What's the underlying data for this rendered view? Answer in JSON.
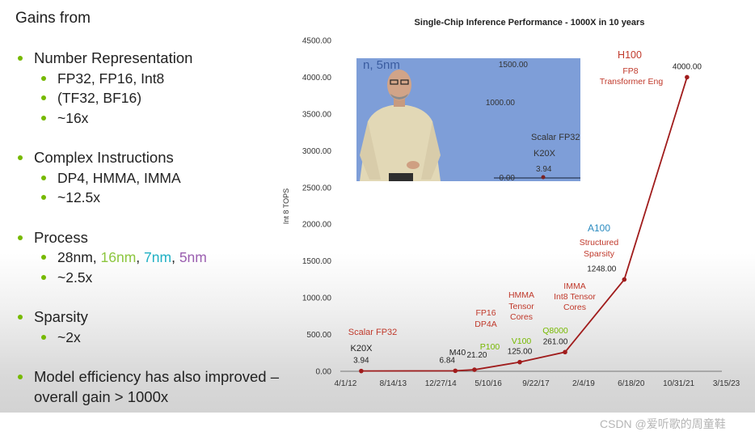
{
  "left": {
    "heading": "Gains from",
    "sections": [
      {
        "title": "Number Representation",
        "subs": [
          {
            "parts": [
              {
                "text": "FP32, FP16, Int8",
                "color": "#222222"
              }
            ]
          },
          {
            "parts": [
              {
                "text": "(TF32, BF16)",
                "color": "#222222"
              }
            ]
          },
          {
            "parts": [
              {
                "text": "~16x",
                "color": "#222222"
              }
            ]
          }
        ]
      },
      {
        "title": "Complex Instructions",
        "subs": [
          {
            "parts": [
              {
                "text": "DP4, HMMA, IMMA",
                "color": "#222222"
              }
            ]
          },
          {
            "parts": [
              {
                "text": "~12.5x",
                "color": "#222222"
              }
            ]
          }
        ]
      },
      {
        "title": "Process",
        "subs": [
          {
            "parts": [
              {
                "text": "28nm",
                "color": "#222222"
              },
              {
                "text": ", ",
                "color": "#222222"
              },
              {
                "text": "16nm",
                "color": "#8cc63e"
              },
              {
                "text": ", ",
                "color": "#222222"
              },
              {
                "text": "7nm",
                "color": "#1fb0c4"
              },
              {
                "text": ", ",
                "color": "#222222"
              },
              {
                "text": "5nm",
                "color": "#9b5fb0"
              }
            ]
          },
          {
            "parts": [
              {
                "text": "~2.5x",
                "color": "#222222"
              }
            ]
          }
        ]
      },
      {
        "title": "Sparsity",
        "subs": [
          {
            "parts": [
              {
                "text": "~2x",
                "color": "#222222"
              }
            ]
          }
        ]
      },
      {
        "title": "Model efficiency has also improved – overall gain > 1000x",
        "subs": []
      }
    ]
  },
  "chart_data": {
    "type": "line",
    "title": "Single-Chip Inference Performance - 1000X in 10 years",
    "ylabel": "Int 8 TOPS",
    "xlabel": "",
    "ylim": [
      0,
      4500
    ],
    "y_ticks": [
      "0.00",
      "500.00",
      "1000.00",
      "1500.00",
      "2000.00",
      "2500.00",
      "3000.00",
      "3500.00",
      "4000.00",
      "4500.00"
    ],
    "x_ticks": [
      "4/1/12",
      "8/14/13",
      "12/27/14",
      "5/10/16",
      "9/22/17",
      "2/4/19",
      "6/18/20",
      "10/31/21",
      "3/15/23"
    ],
    "series": [
      {
        "name": "Int 8 TOPS",
        "color": "#a01c1c",
        "x": [
          2012.85,
          2015.55,
          2016.1,
          2017.4,
          2018.7,
          2020.4,
          2022.2
        ],
        "values": [
          3.94,
          6.84,
          21.2,
          125,
          261,
          1248,
          4000
        ],
        "data_labels": [
          "3.94",
          "6.84",
          "21.20",
          "125.00",
          "261.00",
          "1248.00",
          "4000.00"
        ]
      }
    ],
    "annotations": [
      {
        "text": "Scalar FP32",
        "color": "#c0392b"
      },
      {
        "text": "K20X",
        "color": "#222222"
      },
      {
        "text": "M40",
        "color": "#222222"
      },
      {
        "text": "FP16",
        "color": "#c0392b"
      },
      {
        "text": "DP4A",
        "color": "#c0392b"
      },
      {
        "text": "P100",
        "color": "#76b900"
      },
      {
        "text": "HMMA",
        "color": "#c0392b"
      },
      {
        "text": "Tensor",
        "color": "#c0392b"
      },
      {
        "text": "Cores",
        "color": "#c0392b"
      },
      {
        "text": "V100",
        "color": "#76b900"
      },
      {
        "text": "Q8000",
        "color": "#76b900"
      },
      {
        "text": "IMMA",
        "color": "#c0392b"
      },
      {
        "text": "Int8 Tensor",
        "color": "#c0392b"
      },
      {
        "text": "Cores",
        "color": "#c0392b"
      },
      {
        "text": "A100",
        "color": "#2a8bc0"
      },
      {
        "text": "Structured",
        "color": "#c0392b"
      },
      {
        "text": "Sparsity",
        "color": "#c0392b"
      },
      {
        "text": "H100",
        "color": "#c0392b"
      },
      {
        "text": "FP8",
        "color": "#c0392b"
      },
      {
        "text": "Transformer Eng",
        "color": "#c0392b"
      }
    ]
  },
  "video": {
    "ticks": [
      "1500.00",
      "1000.00",
      "0.00"
    ],
    "partial_label": "n, 5nm",
    "labels": [
      "Scalar FP32",
      "K20X",
      "3.94"
    ]
  },
  "watermark": "CSDN @爱听歌的周童鞋"
}
